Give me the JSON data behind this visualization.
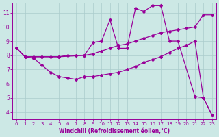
{
  "xlabel": "Windchill (Refroidissement éolien,°C)",
  "ylabel": "",
  "background_color": "#cce8e5",
  "line_color": "#990099",
  "grid_color": "#aacccc",
  "xlim": [
    -0.5,
    23.5
  ],
  "ylim": [
    3.5,
    11.7
  ],
  "xticks": [
    0,
    1,
    2,
    3,
    4,
    5,
    6,
    7,
    8,
    9,
    10,
    11,
    12,
    13,
    14,
    15,
    16,
    17,
    18,
    19,
    20,
    21,
    22,
    23
  ],
  "yticks": [
    4,
    5,
    6,
    7,
    8,
    9,
    10,
    11
  ],
  "line1_x": [
    0,
    1,
    2,
    3,
    4,
    5,
    6,
    7,
    8,
    9,
    10,
    11,
    12,
    13,
    14,
    15,
    16,
    17,
    18,
    19,
    20,
    21,
    22,
    23
  ],
  "line1_y": [
    8.5,
    7.9,
    7.8,
    7.3,
    6.8,
    6.5,
    6.4,
    6.3,
    6.5,
    6.5,
    6.6,
    6.7,
    6.8,
    7.0,
    7.2,
    7.5,
    7.7,
    7.9,
    8.2,
    8.5,
    8.7,
    9.0,
    5.0,
    3.8
  ],
  "line2_x": [
    0,
    1,
    2,
    3,
    4,
    5,
    6,
    7,
    8,
    9,
    10,
    11,
    12,
    13,
    14,
    15,
    16,
    17,
    18,
    19,
    20,
    21,
    22,
    23
  ],
  "line2_y": [
    8.5,
    7.9,
    7.9,
    7.9,
    7.9,
    7.9,
    8.0,
    8.0,
    8.0,
    8.1,
    8.3,
    8.5,
    8.7,
    8.8,
    9.0,
    9.2,
    9.4,
    9.6,
    9.7,
    9.8,
    9.9,
    10.0,
    10.85,
    10.85
  ],
  "line3_x": [
    0,
    1,
    3,
    5,
    8,
    9,
    10,
    11,
    12,
    13,
    14,
    15,
    16,
    17,
    18,
    19,
    21,
    22,
    23
  ],
  "line3_y": [
    8.5,
    7.9,
    7.9,
    7.9,
    8.0,
    8.9,
    9.0,
    10.5,
    8.5,
    8.5,
    11.3,
    11.1,
    11.5,
    11.5,
    9.0,
    9.0,
    5.1,
    5.0,
    3.8
  ]
}
